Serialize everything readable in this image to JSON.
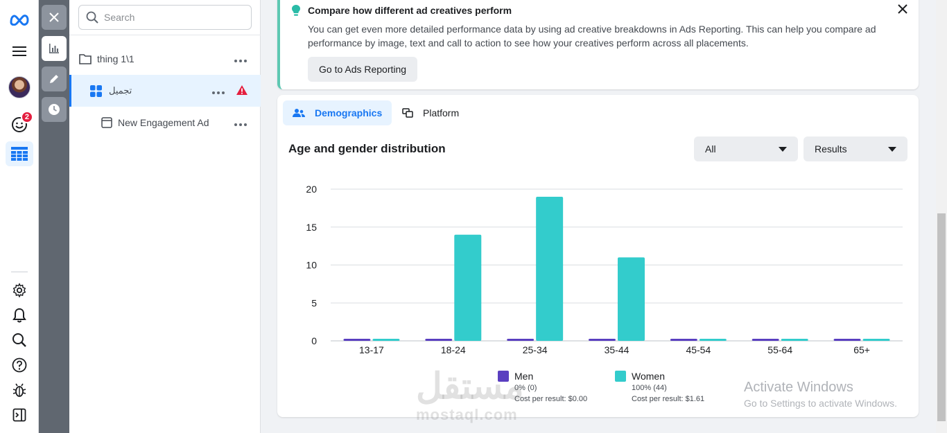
{
  "colors": {
    "accent": "#1877f2",
    "men": "#5a3fc0",
    "women": "#33cccc",
    "warning": "#e41e3f"
  },
  "rail": {
    "notifications_badge": "2",
    "icons": [
      "meta-logo-icon",
      "hamburger-menu-icon",
      "user-avatar",
      "emoji-icon",
      "grid-table-icon",
      "settings-gear-icon",
      "bell-icon",
      "search-icon",
      "help-icon",
      "bug-icon",
      "sidebar-toggle-icon"
    ]
  },
  "search": {
    "placeholder": "Search",
    "value": ""
  },
  "tree": {
    "campaign": {
      "label": "thing 1\\1"
    },
    "adset": {
      "label": "تجميل"
    },
    "ad": {
      "label": "New Engagement Ad"
    }
  },
  "tip": {
    "title": "Compare how different ad creatives perform",
    "body": "You can get even more detailed performance data by using ad creative breakdowns in Ads Reporting. This can help you compare ad performance by image, text and call to action to see how your creatives perform across all placements.",
    "button": "Go to Ads Reporting"
  },
  "tabs": [
    {
      "label": "Demographics",
      "active": true
    },
    {
      "label": "Platform",
      "active": false
    }
  ],
  "chart_header": {
    "title": "Age and gender distribution",
    "filter": "All",
    "metric": "Results"
  },
  "chart_data": {
    "type": "bar",
    "title": "Age and gender distribution",
    "categories": [
      "13-17",
      "18-24",
      "25-34",
      "35-44",
      "45-54",
      "55-64",
      "65+"
    ],
    "series": [
      {
        "name": "Men",
        "values": [
          0,
          0,
          0,
          0,
          0,
          0,
          0
        ]
      },
      {
        "name": "Women",
        "values": [
          0,
          14,
          19,
          11,
          0,
          0,
          0
        ]
      }
    ],
    "yticks": [
      0,
      5,
      10,
      15,
      20
    ],
    "ylim": [
      0,
      20
    ],
    "grid": true,
    "legend_position": "bottom"
  },
  "legend": [
    {
      "name": "Men",
      "share": "0% (0)",
      "cost": "Cost per result: $0.00"
    },
    {
      "name": "Women",
      "share": "100% (44)",
      "cost": "Cost per result: $1.61"
    }
  ],
  "watermark": {
    "title": "Activate Windows",
    "sub": "Go to Settings to activate Windows."
  },
  "brand_watermark": {
    "arabic": "مستقل",
    "latin": "mostaql.com"
  }
}
